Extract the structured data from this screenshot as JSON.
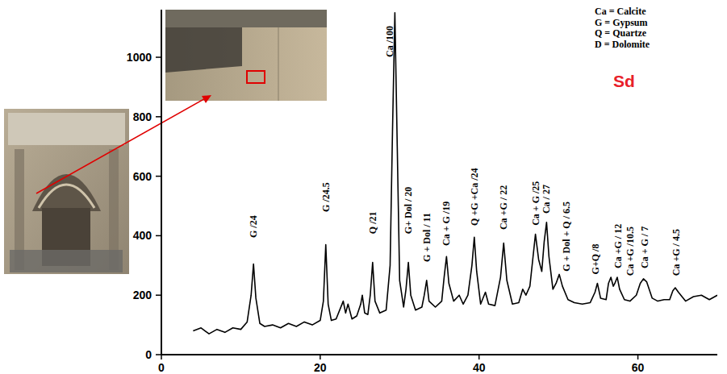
{
  "chart_data": {
    "type": "line",
    "sample_label": "Sd",
    "legend_text": [
      "Ca = Calcite",
      "G = Gypsum",
      "Q = Quartze",
      "D = Dolomite"
    ],
    "xlim": [
      0,
      70
    ],
    "ylim": [
      0,
      1160
    ],
    "xticks": [
      0,
      20,
      40,
      60
    ],
    "yticks": [
      0,
      200,
      400,
      600,
      800,
      1000
    ],
    "x": [
      4,
      5,
      6,
      7,
      8,
      9,
      10,
      10.8,
      11.3,
      11.6,
      11.9,
      12.4,
      13,
      14,
      15,
      16,
      17,
      18,
      19,
      20,
      20.4,
      20.7,
      21,
      21.4,
      22,
      22.9,
      23.2,
      23.5,
      24,
      24.6,
      25.1,
      25.3,
      25.6,
      26,
      26.3,
      26.6,
      26.9,
      27.5,
      28.3,
      28.8,
      29.1,
      29.4,
      29.7,
      30,
      30.5,
      30.8,
      31.1,
      31.4,
      32,
      32.8,
      33.1,
      33.4,
      33.7,
      34.5,
      35.3,
      35.6,
      35.9,
      36.2,
      36.8,
      37.5,
      38,
      38.6,
      39.1,
      39.4,
      39.7,
      40.2,
      40.8,
      41.2,
      42,
      42.7,
      43.1,
      43.5,
      44.2,
      45,
      45.5,
      45.9,
      46.4,
      46.8,
      47.1,
      47.5,
      47.9,
      48.2,
      48.5,
      48.8,
      49.3,
      49.7,
      50.1,
      50.5,
      51.2,
      52,
      53,
      54,
      54.6,
      54.9,
      55.3,
      56,
      56.3,
      56.6,
      56.9,
      57.1,
      57.4,
      57.7,
      58.3,
      59,
      59.8,
      60.3,
      60.7,
      61.1,
      61.8,
      62.5,
      63.3,
      64,
      64.4,
      64.7,
      65.1,
      66,
      67,
      68,
      69,
      70
    ],
    "series": [
      {
        "name": "Sd",
        "color": "#000000",
        "values": [
          80,
          90,
          70,
          85,
          75,
          90,
          85,
          110,
          200,
          305,
          190,
          105,
          95,
          100,
          90,
          105,
          95,
          110,
          100,
          115,
          180,
          370,
          170,
          115,
          120,
          180,
          140,
          170,
          120,
          130,
          170,
          200,
          140,
          135,
          200,
          310,
          180,
          140,
          150,
          300,
          750,
          1150,
          700,
          250,
          160,
          220,
          310,
          200,
          150,
          160,
          200,
          250,
          180,
          160,
          180,
          260,
          330,
          240,
          180,
          200,
          170,
          200,
          300,
          395,
          280,
          170,
          210,
          170,
          165,
          260,
          375,
          250,
          170,
          175,
          220,
          200,
          230,
          330,
          405,
          320,
          280,
          380,
          445,
          330,
          220,
          240,
          270,
          230,
          185,
          175,
          170,
          175,
          210,
          240,
          190,
          185,
          240,
          260,
          230,
          240,
          260,
          220,
          185,
          180,
          200,
          240,
          255,
          245,
          190,
          180,
          185,
          185,
          215,
          225,
          210,
          180,
          195,
          200,
          185,
          200
        ]
      }
    ],
    "annotations": [
      {
        "text": "G /24",
        "x": 11.6,
        "y": 393
      },
      {
        "text": "G /24.5",
        "x": 20.7,
        "y": 480
      },
      {
        "text": "Q /21",
        "x": 26.6,
        "y": 406
      },
      {
        "text": "Ca /100",
        "x": 28.8,
        "y": 1000
      },
      {
        "text": "G+ Dol / 20",
        "x": 31.1,
        "y": 406
      },
      {
        "text": "G + Dol / 11",
        "x": 33.4,
        "y": 312
      },
      {
        "text": "Ca + G /19",
        "x": 35.9,
        "y": 366
      },
      {
        "text": "Q +G +Ca /24",
        "x": 39.4,
        "y": 434
      },
      {
        "text": "Ca +G / 22",
        "x": 43.1,
        "y": 420
      },
      {
        "text": "Ca + G /25",
        "x": 47.1,
        "y": 434
      },
      {
        "text": "Ca / 27",
        "x": 48.5,
        "y": 474
      },
      {
        "text": "G + Dol + Q / 6.5",
        "x": 51.0,
        "y": 280
      },
      {
        "text": "G+Q /8",
        "x": 54.7,
        "y": 270
      },
      {
        "text": "Ca +G / 12",
        "x": 57.5,
        "y": 290
      },
      {
        "text": "Ca +G /10.5",
        "x": 59.0,
        "y": 265
      },
      {
        "text": "Ca + G / 7",
        "x": 60.9,
        "y": 290
      },
      {
        "text": "Ca +G / 4.5",
        "x": 64.8,
        "y": 265
      }
    ]
  }
}
